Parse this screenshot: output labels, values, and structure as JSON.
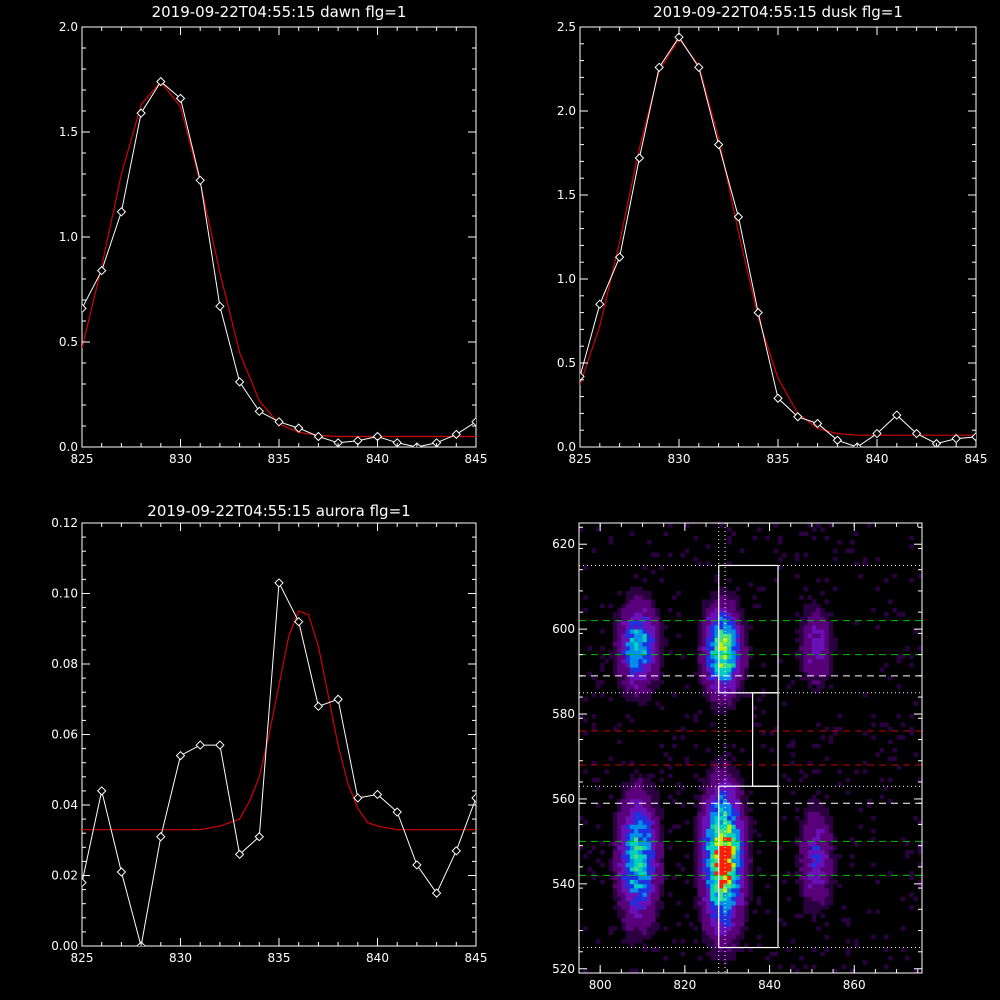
{
  "colors": {
    "background": "#000000",
    "axes": "#ffffff",
    "data_line": "#ffffff",
    "fit_line": "#d40000",
    "green_dash": "#00c000",
    "white_dash": "#ffffff",
    "red_dash": "#c00000"
  },
  "chart_data": [
    {
      "id": "dawn",
      "type": "line",
      "title": "2019-09-22T04:55:15 dawn flg=1",
      "xlim": [
        825,
        845
      ],
      "ylim": [
        0.0,
        2.0
      ],
      "xticks": [
        825,
        830,
        835,
        840,
        845
      ],
      "xtick_labels": [
        "825",
        "830",
        "835",
        "840",
        "845"
      ],
      "yticks": [
        0.0,
        0.5,
        1.0,
        1.5,
        2.0
      ],
      "ytick_labels": [
        "0.0",
        "0.5",
        "1.0",
        "1.5",
        "2.0"
      ],
      "series": [
        {
          "role": "data",
          "marker": "diamond",
          "x": [
            825,
            826,
            827,
            828,
            829,
            830,
            831,
            832,
            833,
            834,
            835,
            836,
            837,
            838,
            839,
            840,
            841,
            842,
            843,
            844,
            845
          ],
          "y": [
            0.66,
            0.84,
            1.12,
            1.59,
            1.74,
            1.66,
            1.27,
            0.67,
            0.31,
            0.17,
            0.12,
            0.09,
            0.05,
            0.02,
            0.03,
            0.05,
            0.02,
            0.0,
            0.02,
            0.06,
            0.12
          ]
        },
        {
          "role": "fit",
          "x": [
            825,
            826,
            827,
            828,
            829,
            830,
            831,
            832,
            833,
            834,
            835,
            836,
            837,
            838,
            840,
            842,
            845
          ],
          "y": [
            0.47,
            0.86,
            1.3,
            1.63,
            1.74,
            1.62,
            1.26,
            0.83,
            0.45,
            0.22,
            0.11,
            0.07,
            0.055,
            0.05,
            0.05,
            0.05,
            0.05
          ]
        }
      ]
    },
    {
      "id": "dusk",
      "type": "line",
      "title": "2019-09-22T04:55:15 dusk flg=1",
      "xlim": [
        825,
        845
      ],
      "ylim": [
        0.0,
        2.5
      ],
      "xticks": [
        825,
        830,
        835,
        840,
        845
      ],
      "xtick_labels": [
        "825",
        "830",
        "835",
        "840",
        "845"
      ],
      "yticks": [
        0.0,
        0.5,
        1.0,
        1.5,
        2.0,
        2.5
      ],
      "ytick_labels": [
        "0.0",
        "0.5",
        "1.0",
        "1.5",
        "2.0",
        "2.5"
      ],
      "series": [
        {
          "role": "data",
          "marker": "diamond",
          "x": [
            825,
            826,
            827,
            828,
            829,
            830,
            831,
            832,
            833,
            834,
            835,
            836,
            837,
            838,
            839,
            840,
            841,
            842,
            843,
            844,
            845
          ],
          "y": [
            0.42,
            0.85,
            1.13,
            1.72,
            2.26,
            2.44,
            2.26,
            1.8,
            1.37,
            0.8,
            0.29,
            0.18,
            0.14,
            0.04,
            0.0,
            0.08,
            0.19,
            0.08,
            0.02,
            0.05,
            0.06
          ]
        },
        {
          "role": "fit",
          "x": [
            825,
            826,
            827,
            828,
            829,
            830,
            831,
            832,
            833,
            834,
            835,
            836,
            837,
            838,
            839,
            840,
            842,
            845
          ],
          "y": [
            0.37,
            0.72,
            1.22,
            1.78,
            2.24,
            2.43,
            2.27,
            1.84,
            1.28,
            0.77,
            0.41,
            0.2,
            0.11,
            0.08,
            0.07,
            0.07,
            0.07,
            0.07
          ]
        }
      ]
    },
    {
      "id": "aurora",
      "type": "line",
      "title": "2019-09-22T04:55:15 aurora flg=1",
      "xlim": [
        825,
        845
      ],
      "ylim": [
        0.0,
        0.12
      ],
      "xticks": [
        825,
        830,
        835,
        840,
        845
      ],
      "xtick_labels": [
        "825",
        "830",
        "835",
        "840",
        "845"
      ],
      "yticks": [
        0.0,
        0.02,
        0.04,
        0.06,
        0.08,
        0.1,
        0.12
      ],
      "ytick_labels": [
        "0.00",
        "0.02",
        "0.04",
        "0.06",
        "0.08",
        "0.10",
        "0.12"
      ],
      "series": [
        {
          "role": "data",
          "marker": "diamond",
          "x": [
            825,
            826,
            827,
            828,
            829,
            830,
            831,
            832,
            833,
            834,
            835,
            836,
            837,
            838,
            839,
            840,
            841,
            842,
            843,
            844,
            845
          ],
          "y": [
            0.018,
            0.044,
            0.021,
            0.0,
            0.031,
            0.054,
            0.057,
            0.057,
            0.026,
            0.031,
            0.103,
            0.092,
            0.068,
            0.07,
            0.042,
            0.043,
            0.038,
            0.023,
            0.015,
            0.027,
            0.042
          ]
        },
        {
          "role": "fit",
          "x": [
            825,
            831,
            832,
            833,
            833.5,
            834,
            834.5,
            835,
            835.5,
            836,
            836.5,
            837,
            837.5,
            838,
            838.5,
            839,
            839.5,
            840,
            841,
            845
          ],
          "y": [
            0.033,
            0.033,
            0.034,
            0.036,
            0.041,
            0.048,
            0.06,
            0.074,
            0.088,
            0.095,
            0.094,
            0.085,
            0.071,
            0.057,
            0.046,
            0.039,
            0.035,
            0.034,
            0.033,
            0.033
          ]
        }
      ]
    },
    {
      "id": "image",
      "type": "heatmap",
      "xlim": [
        795,
        876
      ],
      "ylim": [
        519,
        625
      ],
      "xticks": [
        800,
        820,
        840,
        860
      ],
      "xtick_labels": [
        "800",
        "820",
        "840",
        "860"
      ],
      "yticks": [
        520,
        540,
        560,
        580,
        600,
        620
      ],
      "ytick_labels": [
        "520",
        "540",
        "560",
        "580",
        "600",
        "620"
      ],
      "colormap": [
        "#2a0040",
        "#5a007a",
        "#6a10b8",
        "#2030e0",
        "#0090e8",
        "#00d0c0",
        "#40e080",
        "#c0f000",
        "#ff2000"
      ],
      "blobs": [
        {
          "x": 809,
          "y": 596,
          "sx": 3.0,
          "sy": 6.5,
          "amp": 0.55
        },
        {
          "x": 829,
          "y": 595,
          "sx": 2.8,
          "sy": 6.5,
          "amp": 0.78
        },
        {
          "x": 851,
          "y": 596,
          "sx": 2.6,
          "sy": 6.0,
          "amp": 0.28
        },
        {
          "x": 809,
          "y": 546,
          "sx": 3.0,
          "sy": 9.5,
          "amp": 0.62
        },
        {
          "x": 829,
          "y": 546,
          "sx": 3.0,
          "sy": 10.5,
          "amp": 0.98
        },
        {
          "x": 851,
          "y": 546,
          "sx": 2.6,
          "sy": 8.0,
          "amp": 0.3
        }
      ],
      "vlines_dotted": [
        828,
        829.5
      ],
      "hlines_dotted": [
        525,
        563,
        585,
        615
      ],
      "hlines_green_dashed": [
        542,
        550,
        594,
        602
      ],
      "hlines_white_dashed": [
        559,
        589
      ],
      "hlines_red_dashed": [
        568,
        576
      ],
      "boxes": [
        {
          "x0": 828,
          "x1": 842,
          "y0": 525,
          "y1": 563
        },
        {
          "x0": 828,
          "x1": 842,
          "y0": 585,
          "y1": 615
        },
        {
          "x0": 836,
          "x1": 842,
          "y0": 563,
          "y1": 585
        }
      ]
    }
  ]
}
